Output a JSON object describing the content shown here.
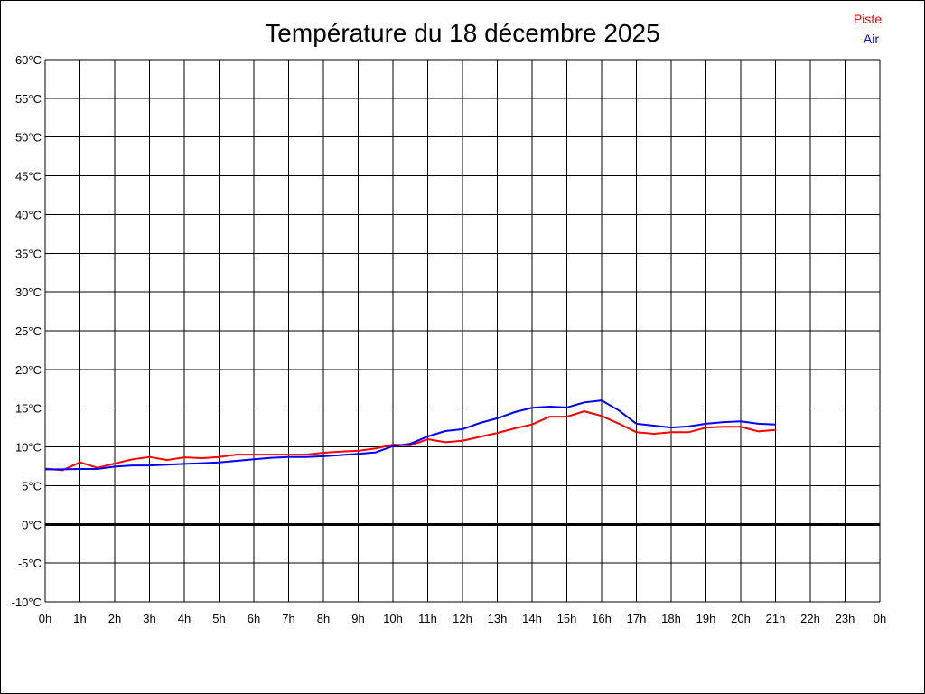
{
  "chart_data": {
    "type": "line",
    "title": "Température du 18 décembre 2025",
    "xlabel": "",
    "ylabel": "",
    "ylim": [
      -10,
      60
    ],
    "xlim": [
      0,
      24
    ],
    "grid": true,
    "legend_placement": "top-right",
    "y_ticks": [
      "60°C",
      "55°C",
      "50°C",
      "45°C",
      "40°C",
      "35°C",
      "30°C",
      "25°C",
      "20°C",
      "15°C",
      "10°C",
      "5°C",
      "0°C",
      "-5°C",
      "-10°C"
    ],
    "x_ticks": [
      "0h",
      "1h",
      "2h",
      "3h",
      "4h",
      "5h",
      "6h",
      "7h",
      "8h",
      "9h",
      "10h",
      "11h",
      "12h",
      "13h",
      "14h",
      "15h",
      "16h",
      "17h",
      "18h",
      "19h",
      "20h",
      "21h",
      "22h",
      "23h",
      "0h"
    ],
    "x": [
      0,
      0.5,
      1,
      1.5,
      2,
      2.5,
      3,
      3.5,
      4,
      4.5,
      5,
      5.5,
      6,
      6.5,
      7,
      7.5,
      8,
      8.5,
      9,
      9.5,
      10,
      10.5,
      11,
      11.5,
      12,
      12.5,
      13,
      13.5,
      14,
      14.5,
      15,
      15.5,
      16,
      16.5,
      17,
      17.5,
      18,
      18.5,
      19,
      19.5,
      20,
      20.5,
      21
    ],
    "series": [
      {
        "name": "Piste",
        "color": "#ff0000",
        "values": [
          7.2,
          7.0,
          8.0,
          7.3,
          7.85,
          8.4,
          8.7,
          8.3,
          8.65,
          8.55,
          8.7,
          9.0,
          9.0,
          9.0,
          9.0,
          9.0,
          9.25,
          9.4,
          9.5,
          9.8,
          10.3,
          10.2,
          11.0,
          10.6,
          10.8,
          11.3,
          11.8,
          12.4,
          12.9,
          13.9,
          13.9,
          14.6,
          14.0,
          13.0,
          11.9,
          11.7,
          11.9,
          11.9,
          12.5,
          12.6,
          12.6,
          12.0,
          12.2
        ]
      },
      {
        "name": "Air",
        "color": "#0000ff",
        "values": [
          7.1,
          7.1,
          7.15,
          7.15,
          7.45,
          7.6,
          7.6,
          7.7,
          7.8,
          7.9,
          8.0,
          8.2,
          8.4,
          8.6,
          8.7,
          8.7,
          8.8,
          8.95,
          9.1,
          9.3,
          10.1,
          10.4,
          11.35,
          12.05,
          12.3,
          13.1,
          13.7,
          14.5,
          15.05,
          15.2,
          15.1,
          15.75,
          16.0,
          14.7,
          13.0,
          12.75,
          12.5,
          12.65,
          13.0,
          13.2,
          13.3,
          13.0,
          12.9
        ]
      }
    ]
  }
}
